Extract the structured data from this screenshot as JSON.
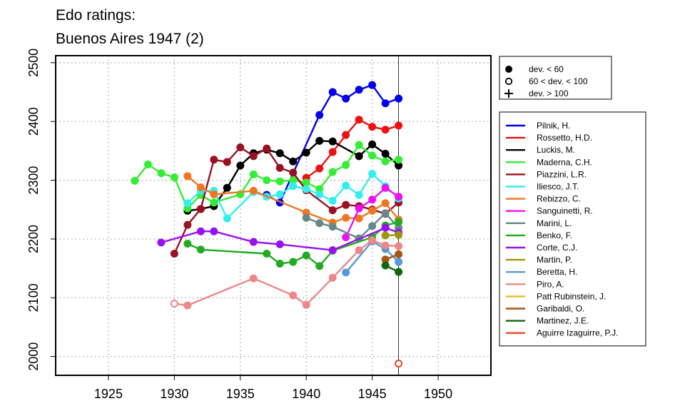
{
  "chart_data": {
    "type": "line",
    "title": "Edo ratings:",
    "subtitle": "Buenos Aires 1947 (2)",
    "xlabel": "",
    "ylabel": "",
    "xlim": [
      1921,
      1954
    ],
    "ylim": [
      1968,
      2512
    ],
    "x_ticks": [
      1925,
      1930,
      1935,
      1940,
      1945,
      1950
    ],
    "y_ticks": [
      2000,
      2100,
      2200,
      2300,
      2400,
      2500
    ],
    "grid": true,
    "event_year": 1947,
    "marker_legend": [
      {
        "label": "dev. < 60",
        "marker": "filled-circle"
      },
      {
        "label": "60 < dev. < 100",
        "marker": "open-circle"
      },
      {
        "label": "dev. > 100",
        "marker": "plus"
      }
    ],
    "series": [
      {
        "name": "Pilnik, H.",
        "color": "#0000ee",
        "points": [
          [
            1937,
            2275,
            "f"
          ],
          [
            1938,
            2262,
            "f"
          ],
          [
            1941,
            2411,
            "f"
          ],
          [
            1942,
            2450,
            "f"
          ],
          [
            1943,
            2439,
            "f"
          ],
          [
            1944,
            2454,
            "f"
          ],
          [
            1945,
            2462,
            "f"
          ],
          [
            1946,
            2431,
            "f"
          ],
          [
            1947,
            2439,
            "f"
          ]
        ]
      },
      {
        "name": "Rossetto, H.D.",
        "color": "#ee1111",
        "points": [
          [
            1940,
            2304,
            "f"
          ],
          [
            1941,
            2320,
            "f"
          ],
          [
            1942,
            2348,
            "f"
          ],
          [
            1943,
            2377,
            "f"
          ],
          [
            1944,
            2403,
            "f"
          ],
          [
            1945,
            2391,
            "f"
          ],
          [
            1946,
            2386,
            "f"
          ],
          [
            1947,
            2393,
            "f"
          ]
        ]
      },
      {
        "name": "Luckis, M.",
        "color": "#000000",
        "points": [
          [
            1931,
            2248,
            "f"
          ],
          [
            1932,
            2251,
            "f"
          ],
          [
            1933,
            2256,
            "f"
          ],
          [
            1934,
            2287,
            "f"
          ],
          [
            1935,
            2325,
            "f"
          ],
          [
            1936,
            2346,
            "f"
          ],
          [
            1937,
            2352,
            "f"
          ],
          [
            1938,
            2346,
            "f"
          ],
          [
            1939,
            2332,
            "f"
          ],
          [
            1940,
            2347,
            "f"
          ],
          [
            1941,
            2367,
            "f"
          ],
          [
            1942,
            2366,
            "f"
          ],
          [
            1944,
            2341,
            "f"
          ],
          [
            1945,
            2361,
            "f"
          ],
          [
            1946,
            2345,
            "f"
          ],
          [
            1947,
            2325,
            "f"
          ]
        ]
      },
      {
        "name": "Maderna, C.H.",
        "color": "#33ee33",
        "points": [
          [
            1927,
            2299,
            "f"
          ],
          [
            1928,
            2327,
            "f"
          ],
          [
            1929,
            2312,
            "f"
          ],
          [
            1930,
            2305,
            "f"
          ],
          [
            1931,
            2252,
            "f"
          ],
          [
            1932,
            2275,
            "f"
          ],
          [
            1933,
            2262,
            "f"
          ],
          [
            1935,
            2276,
            "f"
          ],
          [
            1936,
            2310,
            "f"
          ],
          [
            1937,
            2300,
            "f"
          ],
          [
            1938,
            2298,
            "f"
          ],
          [
            1939,
            2300,
            "f"
          ],
          [
            1940,
            2296,
            "f"
          ],
          [
            1941,
            2285,
            "f"
          ],
          [
            1942,
            2314,
            "f"
          ],
          [
            1943,
            2326,
            "f"
          ],
          [
            1944,
            2360,
            "f"
          ],
          [
            1945,
            2342,
            "f"
          ],
          [
            1946,
            2332,
            "f"
          ],
          [
            1947,
            2335,
            "f"
          ]
        ]
      },
      {
        "name": "Piazzini, L.R.",
        "color": "#991122",
        "points": [
          [
            1930,
            2175,
            "f"
          ],
          [
            1931,
            2224,
            "f"
          ],
          [
            1932,
            2251,
            "f"
          ],
          [
            1933,
            2335,
            "f"
          ],
          [
            1934,
            2331,
            "f"
          ],
          [
            1935,
            2356,
            "f"
          ],
          [
            1936,
            2341,
            "f"
          ],
          [
            1937,
            2354,
            "f"
          ],
          [
            1938,
            2321,
            "f"
          ],
          [
            1939,
            2313,
            "f"
          ],
          [
            1940,
            2283,
            "f"
          ],
          [
            1942,
            2249,
            "f"
          ],
          [
            1943,
            2258,
            "f"
          ],
          [
            1944,
            2256,
            "f"
          ],
          [
            1945,
            2250,
            "f"
          ],
          [
            1946,
            2243,
            "f"
          ],
          [
            1947,
            2262,
            "f"
          ]
        ]
      },
      {
        "name": "Iliesco, J.T.",
        "color": "#33eeee",
        "points": [
          [
            1931,
            2261,
            "f"
          ],
          [
            1932,
            2282,
            "f"
          ],
          [
            1933,
            2282,
            "f"
          ],
          [
            1934,
            2235,
            "f"
          ],
          [
            1936,
            2280,
            "f"
          ],
          [
            1937,
            2272,
            "f"
          ],
          [
            1938,
            2276,
            "f"
          ],
          [
            1939,
            2290,
            "f"
          ],
          [
            1940,
            2285,
            "f"
          ],
          [
            1941,
            2276,
            "f"
          ],
          [
            1942,
            2265,
            "f"
          ],
          [
            1943,
            2291,
            "f"
          ],
          [
            1944,
            2275,
            "f"
          ],
          [
            1945,
            2311,
            "f"
          ],
          [
            1946,
            2290,
            "f"
          ],
          [
            1947,
            2269,
            "f"
          ]
        ]
      },
      {
        "name": "Rebizzo, C.",
        "color": "#ee7722",
        "points": [
          [
            1931,
            2307,
            "f"
          ],
          [
            1932,
            2288,
            "f"
          ],
          [
            1933,
            2276,
            "f"
          ],
          [
            1936,
            2282,
            "f"
          ],
          [
            1940,
            2245,
            "f"
          ],
          [
            1942,
            2228,
            "f"
          ],
          [
            1943,
            2236,
            "f"
          ],
          [
            1944,
            2235,
            "f"
          ],
          [
            1945,
            2248,
            "f"
          ],
          [
            1946,
            2261,
            "f"
          ],
          [
            1947,
            2233,
            "f"
          ]
        ]
      },
      {
        "name": "Sanguinetti, R.",
        "color": "#ee11ee",
        "points": [
          [
            1943,
            2203,
            "f"
          ],
          [
            1944,
            2252,
            "f"
          ],
          [
            1945,
            2267,
            "f"
          ],
          [
            1946,
            2287,
            "f"
          ],
          [
            1947,
            2272,
            "f"
          ]
        ]
      },
      {
        "name": "Marini, L.",
        "color": "#668888",
        "points": [
          [
            1940,
            2236,
            "f"
          ],
          [
            1941,
            2227,
            "f"
          ],
          [
            1942,
            2221,
            "f"
          ],
          [
            1944,
            2201,
            "f"
          ],
          [
            1945,
            2222,
            "f"
          ],
          [
            1946,
            2244,
            "f"
          ],
          [
            1947,
            2219,
            "f"
          ]
        ]
      },
      {
        "name": "Benko, F.",
        "color": "#22aa22",
        "points": [
          [
            1931,
            2192,
            "f"
          ],
          [
            1932,
            2182,
            "f"
          ],
          [
            1937,
            2175,
            "f"
          ],
          [
            1938,
            2158,
            "f"
          ],
          [
            1939,
            2161,
            "f"
          ],
          [
            1940,
            2172,
            "f"
          ],
          [
            1941,
            2154,
            "f"
          ],
          [
            1942,
            2180,
            "f"
          ],
          [
            1945,
            2203,
            "f"
          ],
          [
            1946,
            2223,
            "f"
          ],
          [
            1947,
            2229,
            "f"
          ]
        ]
      },
      {
        "name": "Corte, C.J.",
        "color": "#9911ee",
        "points": [
          [
            1929,
            2194,
            "f"
          ],
          [
            1932,
            2213,
            "f"
          ],
          [
            1933,
            2213,
            "f"
          ],
          [
            1936,
            2195,
            "f"
          ],
          [
            1938,
            2191,
            "f"
          ],
          [
            1942,
            2181,
            "f"
          ],
          [
            1946,
            2219,
            "f"
          ],
          [
            1947,
            2211,
            "f"
          ]
        ]
      },
      {
        "name": "Martin, P.",
        "color": "#999911",
        "points": [
          [
            1946,
            2206,
            "f"
          ],
          [
            1947,
            2207,
            "f"
          ]
        ]
      },
      {
        "name": "Beretta, H.",
        "color": "#5599dd",
        "points": [
          [
            1943,
            2143,
            "f"
          ],
          [
            1945,
            2196,
            "f"
          ],
          [
            1946,
            2183,
            "f"
          ],
          [
            1947,
            2161,
            "f"
          ]
        ]
      },
      {
        "name": "Piro, A.",
        "color": "#ee8888",
        "points": [
          [
            1930,
            2090,
            "o"
          ],
          [
            1931,
            2087,
            "f"
          ],
          [
            1936,
            2133,
            "f"
          ],
          [
            1939,
            2104,
            "f"
          ],
          [
            1940,
            2088,
            "f"
          ],
          [
            1942,
            2134,
            "f"
          ],
          [
            1944,
            2181,
            "f"
          ],
          [
            1945,
            2198,
            "f"
          ],
          [
            1946,
            2189,
            "f"
          ],
          [
            1947,
            2188,
            "f"
          ]
        ]
      },
      {
        "name": "Patt Rubinstein, J.",
        "color": "#eebb22",
        "points": []
      },
      {
        "name": "Garibaldi, O.",
        "color": "#aa5511",
        "points": [
          [
            1946,
            2165,
            "f"
          ],
          [
            1947,
            2174,
            "f"
          ]
        ]
      },
      {
        "name": "Martinez, J.E.",
        "color": "#116611",
        "points": [
          [
            1946,
            2155,
            "f"
          ],
          [
            1947,
            2144,
            "f"
          ]
        ]
      },
      {
        "name": "Aguirre Izaguirre, P.J.",
        "color": "#ee4422",
        "points": [
          [
            1947,
            1988,
            "o"
          ]
        ]
      }
    ]
  }
}
